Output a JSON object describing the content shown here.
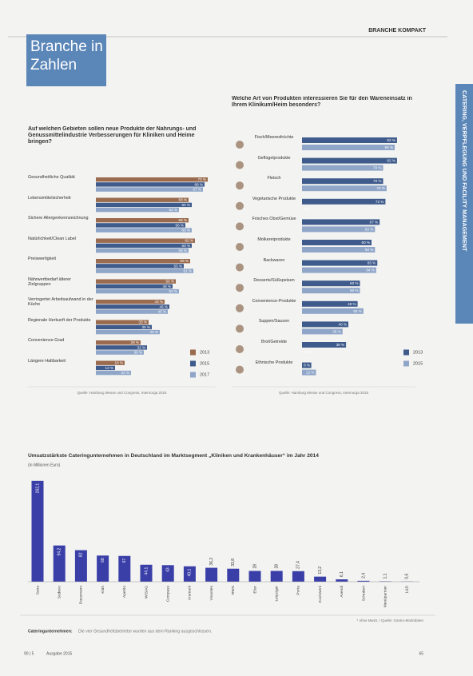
{
  "header": {
    "section": "BRANCHE KOMPAKT",
    "title": "Branche in Zahlen",
    "side_tab": "CATERING, VERPFLEGUNG UND FACILITY MANAGEMENT"
  },
  "chart_data": [
    {
      "type": "hbar",
      "title": "Auf welchen Gebieten sollen neue Produkte der Nahrungs- und Genussmittelindustrie Verbesserungen für Kliniken und Heime bringen?",
      "categories": [
        "Gesundheitliche Qualität",
        "Lebensmittelsicherheit",
        "Sichere Allergenkennzeichnung",
        "Natürlichkeit/Clean Label",
        "Preiswertigkeit",
        "Nährwertbedarf älterer Zielgruppen",
        "Verringerter Arbeitsaufwand in der Küche",
        "Regionale Herkunft der Produkte",
        "Convenience-Grad",
        "Längere Haltbarkeit"
      ],
      "series": [
        {
          "name": "2013",
          "color": "#9a6b4e",
          "values": [
            70,
            58,
            58,
            62,
            59,
            50,
            43,
            33,
            28,
            18
          ],
          "value_labels": [
            "70 %",
            "58 %",
            "58 %",
            "62 %",
            "59 %",
            "50 %",
            "43 %",
            "33 %",
            "28 %",
            "18 %"
          ]
        },
        {
          "name": "2015",
          "color": "#3f5b8c",
          "values": [
            68,
            60,
            56,
            60,
            55,
            48,
            46,
            35,
            32,
            12
          ],
          "value_labels": [
            "68 %",
            "60 %",
            "56 %",
            "60 %",
            "55 %",
            "48 %",
            "46 %",
            "35 %",
            "32 %",
            "12 %"
          ]
        },
        {
          "name": "2017",
          "color": "#8fa6c9",
          "values": [
            67,
            52,
            60,
            58,
            61,
            52,
            45,
            40,
            30,
            22
          ],
          "value_labels": [
            "67 %",
            "52 %",
            "60 %",
            "58 %",
            "61 %",
            "52 %",
            "45 %",
            "40 %",
            "30 %",
            "22 %"
          ]
        }
      ],
      "xlim": [
        0,
        100
      ],
      "source": "Quelle: Hamburg Messe und Congress, Internorga 2015"
    },
    {
      "type": "hbar",
      "title": "Welche Art von Produkten interessieren Sie für den Wareneinsatz in Ihrem Klinikum/Heim besonders?",
      "categories": [
        "Fisch/Meeresfrüchte",
        "Geflügelprodukte",
        "Fleisch",
        "Vegetarische Produkte",
        "Frisches Obst/Gemüse",
        "Molkereiprodukte",
        "Backwaren",
        "Desserts/Süßspeisen",
        "Convenience-Produkte",
        "Suppen/Saucen",
        "Brot/Getreide",
        "Ethnische Produkte"
      ],
      "series": [
        {
          "name": "2013",
          "color": "#3f5b8c",
          "values": [
            82,
            82,
            70,
            72,
            67,
            60,
            65,
            50,
            48,
            40,
            38,
            8
          ],
          "value_labels": [
            "82 %",
            "82 %",
            "70 %",
            "72 %",
            "67 %",
            "60 %",
            "65 %",
            "50 %",
            "48 %",
            "40 %",
            "38 %",
            "8 %"
          ]
        },
        {
          "name": "2015",
          "color": "#8fa6c9",
          "values": [
            80,
            70,
            73,
            0,
            63,
            63,
            64,
            50,
            53,
            35,
            0,
            12
          ],
          "value_labels": [
            "80 %",
            "70 %",
            "73 %",
            "0 %",
            "63 %",
            "63 %",
            "64 %",
            "50 %",
            "53 %",
            "35 %",
            "0 %",
            "12 %"
          ]
        }
      ],
      "xlim": [
        0,
        100
      ],
      "source": "Quelle: Hamburg Messe und Congress, Internorga 2015"
    },
    {
      "type": "bar",
      "title": "Umsatzstärkste Cateringunternehmen in Deutschland im Marktsegment „Kliniken und Krankenhäuser“ im Jahr 2014",
      "subtitle": "(in Millionen Euro)",
      "categories": [
        "Sana",
        "Sodexo",
        "Dussmann",
        "Klüh",
        "Apetito",
        "WISAG",
        "Compass",
        "Aramark",
        "Vivantes",
        "RWS",
        "Elior",
        "Leipziger",
        "Porta",
        "Kochwerk",
        "Avendi",
        "Schubert",
        "Menüpartner",
        "L&D"
      ],
      "values": [
        262.1,
        94.2,
        82,
        68,
        67,
        44.1,
        43,
        40.1,
        36.2,
        33.8,
        28,
        28,
        27.4,
        13.2,
        6.1,
        2.4,
        1.1,
        0.6
      ],
      "value_labels": [
        "262,1",
        "94,2",
        "82",
        "68",
        "67",
        "44,1",
        "43",
        "40,1",
        "36,2",
        "33,8",
        "28",
        "28",
        "27,4",
        "13,2",
        "6,1",
        "2,4",
        "1,1",
        "0,6"
      ],
      "color": "#3a3fa8",
      "ylim": [
        0,
        270
      ],
      "footnote": "* ohne MwSt. / Quelle: Gastro-Marktdaten"
    }
  ],
  "footer": {
    "note_label": "Cateringunternehmen:",
    "note": "Die vier Gesundheitsbetriebe wurden aus dem Ranking ausgeschlossen.",
    "page_left": "90 | 5",
    "issue": "Ausgabe 2015",
    "page_right": "65"
  }
}
